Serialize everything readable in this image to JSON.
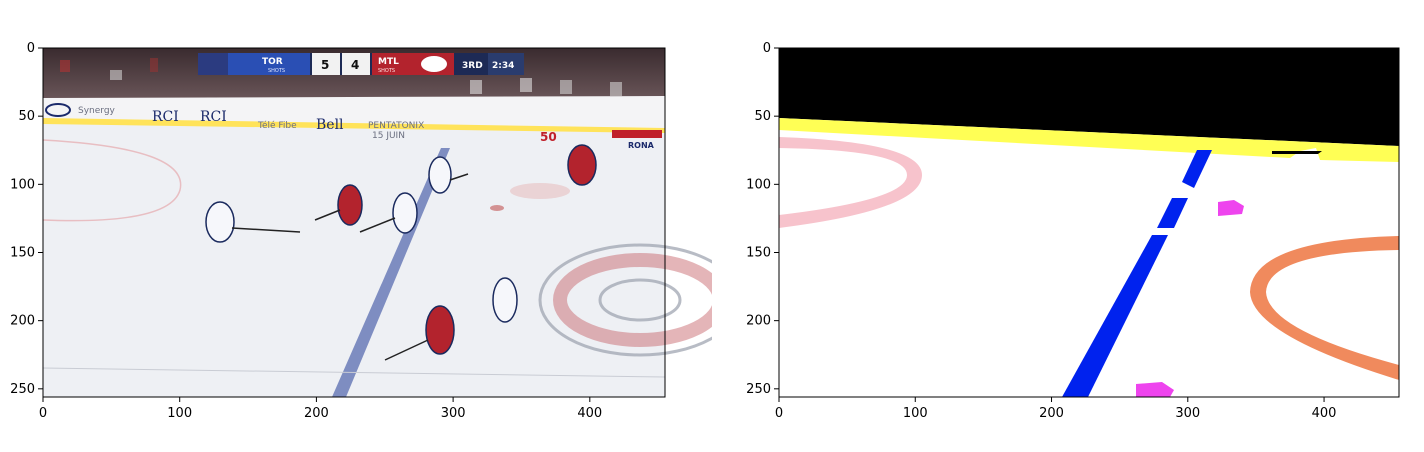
{
  "axes": {
    "x_ticks": [
      "0",
      "100",
      "200",
      "300",
      "400"
    ],
    "y_ticks": [
      "0",
      "50",
      "100",
      "150",
      "200",
      "250"
    ],
    "x_tick_values": [
      0,
      100,
      200,
      300,
      400
    ],
    "y_tick_values": [
      0,
      50,
      100,
      150,
      200,
      250
    ],
    "xlim": [
      0,
      455
    ],
    "ylim": [
      0,
      256
    ]
  },
  "scorebug": {
    "team_away": "TOR",
    "score_away": "5",
    "score_home": "4",
    "team_home": "MTL",
    "period": "3RD",
    "clock": "2:34",
    "shots_label": "SHOTS"
  },
  "boards": {
    "sponsor_1": "RCI",
    "sponsor_2": "RCI",
    "sponsor_3": "Bell",
    "sponsor_3_prefix": "Télé Fibe",
    "sponsor_4": "PENTATONIX",
    "sponsor_4_sub": "15 JUIN",
    "sponsor_5": "50",
    "sponsor_6": "RONA",
    "sponsor_0": "Synergy"
  },
  "segmentation_colors": {
    "crowd": "#000000",
    "boards": "#ffff55",
    "ice": "#ffffff",
    "center_line": "#0022ee",
    "circle_left": "#f7c3cc",
    "circle_right": "#f08a5d",
    "dot": "#ee44ee"
  }
}
